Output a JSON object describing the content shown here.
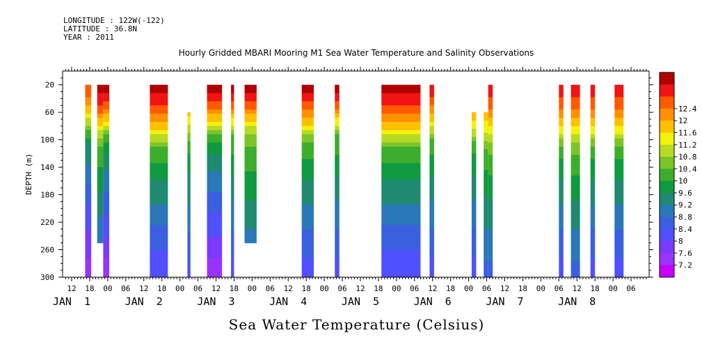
{
  "meta": {
    "longitude": "LONGITUDE : 122W(-122)",
    "latitude": "LATITUDE : 36.8N",
    "year": "YEAR : 2011"
  },
  "chart_data": {
    "type": "heatmap",
    "title": "Hourly Gridded MBARI Mooring M1 Sea Water Temperature and Salinity Observations",
    "xlabel": "Sea Water Temperature (Celsius)",
    "ylabel": "DEPTH (m)",
    "ylim": [
      300,
      0
    ],
    "x_time_range_hours": [
      "JAN 1 09:00",
      "JAN 8 12:00"
    ],
    "y_ticks": [
      20,
      60,
      100,
      140,
      180,
      220,
      260,
      300
    ],
    "x_hour_ticks": [
      "12",
      "18",
      "00",
      "06",
      "12",
      "18",
      "00",
      "06",
      "12",
      "18",
      "00",
      "06",
      "12",
      "18",
      "00",
      "06",
      "12",
      "18",
      "00",
      "06",
      "12",
      "18",
      "00",
      "06",
      "12",
      "18",
      "00",
      "06",
      "12",
      "18",
      "00",
      "06"
    ],
    "day_labels": [
      {
        "label": "JAN  1",
        "hour": 12
      },
      {
        "label": "JAN  2",
        "hour": 36
      },
      {
        "label": "JAN  3",
        "hour": 60
      },
      {
        "label": "JAN  4",
        "hour": 84
      },
      {
        "label": "JAN  5",
        "hour": 108
      },
      {
        "label": "JAN  6",
        "hour": 132
      },
      {
        "label": "JAN  7",
        "hour": 156
      },
      {
        "label": "JAN  8",
        "hour": 180
      }
    ],
    "colorbar": {
      "levels": [
        7.2,
        7.6,
        8,
        8.4,
        8.8,
        9.2,
        9.6,
        10,
        10.4,
        10.8,
        11.2,
        11.6,
        12,
        12.4
      ],
      "colors": [
        "#c800ff",
        "#9a33ff",
        "#7a3aff",
        "#5050ff",
        "#3a60e0",
        "#2a78b8",
        "#1f8a70",
        "#109a40",
        "#3cae2c",
        "#7cc428",
        "#b8da24",
        "#f2f20c",
        "#ffc000",
        "#ff9000",
        "#ff5a00",
        "#f01414",
        "#b00000"
      ]
    },
    "segments": [
      {
        "start_hour": 16.5,
        "end_hour": 18.5,
        "top_depth": 20,
        "bottom_depth": 300,
        "surface_temp": 12.0,
        "deep_temp": 7.3,
        "mid_depth": 100
      },
      {
        "start_hour": 20.5,
        "end_hour": 22.5,
        "top_depth": 20,
        "bottom_depth": 250,
        "surface_temp": 12.6,
        "deep_temp": 8.2,
        "mid_depth": 100
      },
      {
        "start_hour": 22.5,
        "end_hour": 24.5,
        "top_depth": 20,
        "bottom_depth": 300,
        "surface_temp": 12.6,
        "deep_temp": 7.3,
        "mid_depth": 100
      },
      {
        "start_hour": 38.0,
        "end_hour": 44.0,
        "top_depth": 20,
        "bottom_depth": 300,
        "surface_temp": 12.6,
        "deep_temp": 7.9,
        "mid_depth": 110
      },
      {
        "start_hour": 50.5,
        "end_hour": 51.5,
        "top_depth": 60,
        "bottom_depth": 300,
        "surface_temp": 11.8,
        "deep_temp": 8.1,
        "mid_depth": 110
      },
      {
        "start_hour": 57.0,
        "end_hour": 62.0,
        "top_depth": 20,
        "bottom_depth": 300,
        "surface_temp": 12.6,
        "deep_temp": 7.3,
        "mid_depth": 100
      },
      {
        "start_hour": 65.0,
        "end_hour": 66.0,
        "top_depth": 20,
        "bottom_depth": 300,
        "surface_temp": 12.6,
        "deep_temp": 8.0,
        "mid_depth": 90
      },
      {
        "start_hour": 69.5,
        "end_hour": 73.5,
        "top_depth": 20,
        "bottom_depth": 250,
        "surface_temp": 12.6,
        "deep_temp": 8.4,
        "mid_depth": 90
      },
      {
        "start_hour": 88.5,
        "end_hour": 92.5,
        "top_depth": 20,
        "bottom_depth": 300,
        "surface_temp": 12.6,
        "deep_temp": 8.0,
        "mid_depth": 100
      },
      {
        "start_hour": 99.5,
        "end_hour": 101.0,
        "top_depth": 20,
        "bottom_depth": 300,
        "surface_temp": 12.6,
        "deep_temp": 8.0,
        "mid_depth": 90
      },
      {
        "start_hour": 115.0,
        "end_hour": 128.0,
        "top_depth": 20,
        "bottom_depth": 300,
        "surface_temp": 12.6,
        "deep_temp": 7.9,
        "mid_depth": 110
      },
      {
        "start_hour": 131.0,
        "end_hour": 132.5,
        "top_depth": 20,
        "bottom_depth": 300,
        "surface_temp": 12.3,
        "deep_temp": 8.0,
        "mid_depth": 100
      },
      {
        "start_hour": 145.0,
        "end_hour": 146.5,
        "top_depth": 60,
        "bottom_depth": 300,
        "surface_temp": 12.0,
        "deep_temp": 8.0,
        "mid_depth": 110
      },
      {
        "start_hour": 149.0,
        "end_hour": 150.5,
        "top_depth": 60,
        "bottom_depth": 300,
        "surface_temp": 12.0,
        "deep_temp": 8.4,
        "mid_depth": 110
      },
      {
        "start_hour": 150.5,
        "end_hour": 152.0,
        "top_depth": 20,
        "bottom_depth": 300,
        "surface_temp": 12.3,
        "deep_temp": 8.4,
        "mid_depth": 110
      },
      {
        "start_hour": 174.0,
        "end_hour": 175.5,
        "top_depth": 20,
        "bottom_depth": 300,
        "surface_temp": 12.3,
        "deep_temp": 8.0,
        "mid_depth": 110
      },
      {
        "start_hour": 178.0,
        "end_hour": 181.0,
        "top_depth": 20,
        "bottom_depth": 300,
        "surface_temp": 12.3,
        "deep_temp": 8.4,
        "mid_depth": 110
      },
      {
        "start_hour": 184.5,
        "end_hour": 186.0,
        "top_depth": 20,
        "bottom_depth": 300,
        "surface_temp": 12.3,
        "deep_temp": 8.0,
        "mid_depth": 110
      },
      {
        "start_hour": 192.5,
        "end_hour": 195.5,
        "top_depth": 20,
        "bottom_depth": 300,
        "surface_temp": 12.3,
        "deep_temp": 8.0,
        "mid_depth": 110
      }
    ]
  }
}
